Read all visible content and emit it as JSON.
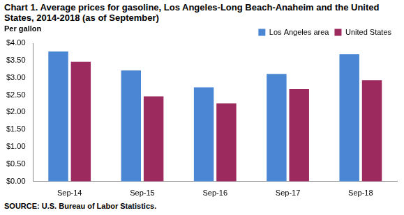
{
  "chart_data": {
    "type": "bar",
    "title": "Chart 1. Average prices for gasoline, Los Angeles-Long Beach-Anaheim and the United States, 2014-2018 (as of September)",
    "y_label": "Per gallon",
    "source": "SOURCE: U.S. Bureau of Labor Statistics.",
    "categories": [
      "Sep-14",
      "Sep-15",
      "Sep-16",
      "Sep-17",
      "Sep-18"
    ],
    "series": [
      {
        "name": "Los Angeles area",
        "color": "#4a86d4",
        "values": [
          3.76,
          3.21,
          2.72,
          3.11,
          3.68
        ]
      },
      {
        "name": "United States",
        "color": "#9c2a5e",
        "values": [
          3.46,
          2.46,
          2.26,
          2.67,
          2.93
        ]
      }
    ],
    "ylim": [
      0,
      4
    ],
    "yticks": [
      {
        "value": 0,
        "label": "$0.00"
      },
      {
        "value": 0.5,
        "label": "$0.50"
      },
      {
        "value": 1,
        "label": "$1.00"
      },
      {
        "value": 1.5,
        "label": "$1.50"
      },
      {
        "value": 2,
        "label": "$2.00"
      },
      {
        "value": 2.5,
        "label": "$2.50"
      },
      {
        "value": 3,
        "label": "$3.00"
      },
      {
        "value": 3.5,
        "label": "$3.50"
      },
      {
        "value": 4,
        "label": "$4.00"
      }
    ],
    "grid": false,
    "legend": "top-right"
  }
}
